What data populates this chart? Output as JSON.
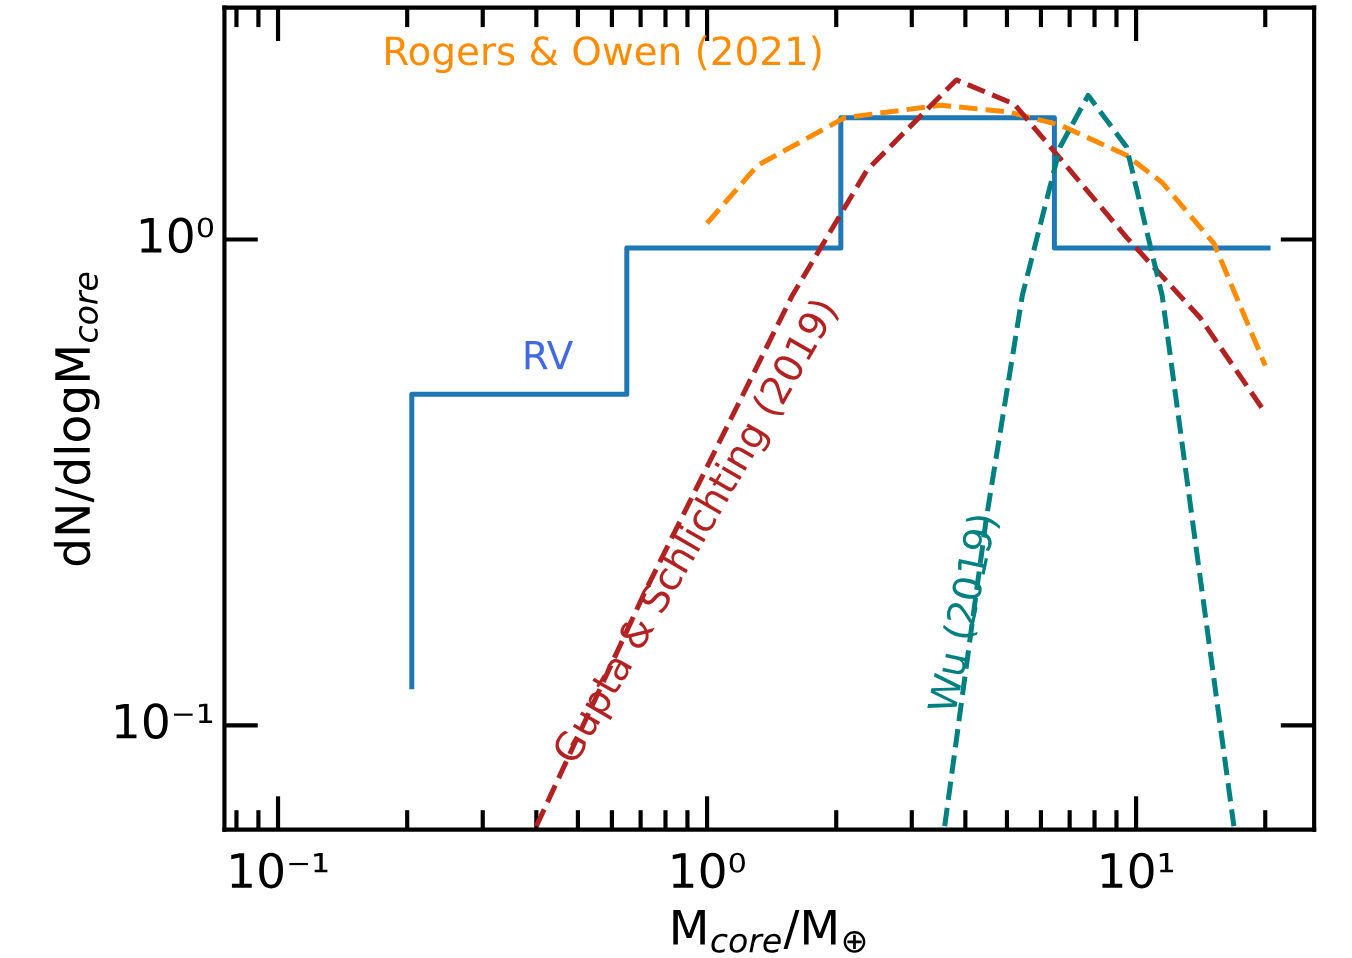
{
  "chart_data": {
    "type": "line",
    "xlabel": "M$_{core}$/M$_{⊕}$",
    "ylabel": "dN/dlogM$_{core}$",
    "log": "xy",
    "grid": false,
    "legend": false,
    "xlim": [
      0.075,
      26
    ],
    "ylim": [
      0.061,
      3.0
    ],
    "xticks": [
      {
        "value": 0.1,
        "label": "10⁻¹"
      },
      {
        "value": 1,
        "label": "10⁰"
      },
      {
        "value": 10,
        "label": "10¹"
      }
    ],
    "yticks": [
      {
        "value": 0.1,
        "label": "10⁻¹"
      },
      {
        "value": 1,
        "label": "10⁰"
      }
    ],
    "series": [
      {
        "name": "RV",
        "type": "step",
        "color": "#1f77b4",
        "line_style": "solid",
        "x": [
          0.205,
          0.205,
          0.65,
          2.05,
          6.45,
          20.3
        ],
        "values": [
          0.12,
          0.48,
          0.96,
          1.78,
          0.96,
          0.96
        ]
      },
      {
        "name": "Rogers & Owen (2021)",
        "type": "line",
        "color": "#ff8c00",
        "line_style": "dashed",
        "x": [
          1.0,
          1.31,
          2.09,
          3.5,
          5.04,
          6.65,
          9.5,
          11.5,
          15.2,
          20
        ],
        "values": [
          1.08,
          1.42,
          1.78,
          1.89,
          1.83,
          1.72,
          1.49,
          1.31,
          0.98,
          0.55
        ]
      },
      {
        "name": "Gupta & Schlichting (2019)",
        "type": "line",
        "color": "#b22222",
        "line_style": "dashed",
        "x": [
          0.4,
          0.718,
          1.58,
          2.36,
          3.81,
          5.2,
          9.5,
          14.1,
          20
        ],
        "values": [
          0.062,
          0.189,
          0.767,
          1.39,
          2.13,
          1.9,
          1.01,
          0.69,
          0.44
        ]
      },
      {
        "name": "Wu (2019)",
        "type": "line",
        "color": "#008080",
        "line_style": "dashed",
        "x": [
          3.58,
          4.48,
          5.43,
          6.65,
          7.73,
          9.5,
          11.5,
          13.5,
          16.9
        ],
        "values": [
          0.062,
          0.268,
          0.767,
          1.55,
          1.98,
          1.55,
          0.767,
          0.268,
          0.062
        ]
      }
    ]
  }
}
